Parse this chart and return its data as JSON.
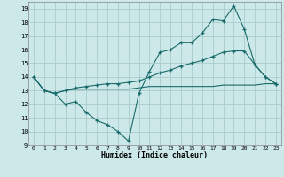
{
  "xlabel": "Humidex (Indice chaleur)",
  "bg_color": "#cce8e8",
  "grid_color": "#aacccc",
  "line_color": "#1a6b6b",
  "xlim": [
    -0.5,
    23.5
  ],
  "ylim": [
    9,
    19.5
  ],
  "xticks": [
    0,
    1,
    2,
    3,
    4,
    5,
    6,
    7,
    8,
    9,
    10,
    11,
    12,
    13,
    14,
    15,
    16,
    17,
    18,
    19,
    20,
    21,
    22,
    23
  ],
  "yticks": [
    9,
    10,
    11,
    12,
    13,
    14,
    15,
    16,
    17,
    18,
    19
  ],
  "line1_x": [
    0,
    1,
    2,
    3,
    4,
    5,
    6,
    7,
    8,
    9,
    10,
    11,
    12,
    13,
    14,
    15,
    16,
    17,
    18,
    19,
    20,
    21,
    22,
    23
  ],
  "line1_y": [
    14,
    13,
    12.8,
    12,
    12.2,
    11.4,
    10.8,
    10.5,
    10.0,
    9.3,
    12.8,
    14.4,
    15.8,
    16.0,
    16.5,
    16.5,
    17.2,
    18.2,
    18.1,
    19.2,
    17.5,
    14.9,
    14.0,
    13.5
  ],
  "line2_x": [
    0,
    1,
    2,
    3,
    4,
    5,
    6,
    7,
    8,
    9,
    10,
    11,
    12,
    13,
    14,
    15,
    16,
    17,
    18,
    19,
    20,
    21,
    22,
    23
  ],
  "line2_y": [
    14,
    13,
    12.8,
    13.0,
    13.2,
    13.3,
    13.4,
    13.5,
    13.5,
    13.6,
    13.7,
    14.0,
    14.3,
    14.5,
    14.8,
    15.0,
    15.2,
    15.5,
    15.8,
    15.9,
    15.9,
    14.9,
    14.0,
    13.5
  ],
  "line3_x": [
    0,
    1,
    2,
    3,
    4,
    5,
    6,
    7,
    8,
    9,
    10,
    11,
    12,
    13,
    14,
    15,
    16,
    17,
    18,
    19,
    20,
    21,
    22,
    23
  ],
  "line3_y": [
    14,
    13,
    12.8,
    13.0,
    13.1,
    13.1,
    13.1,
    13.1,
    13.1,
    13.1,
    13.2,
    13.3,
    13.3,
    13.3,
    13.3,
    13.3,
    13.3,
    13.3,
    13.4,
    13.4,
    13.4,
    13.4,
    13.5,
    13.5
  ]
}
